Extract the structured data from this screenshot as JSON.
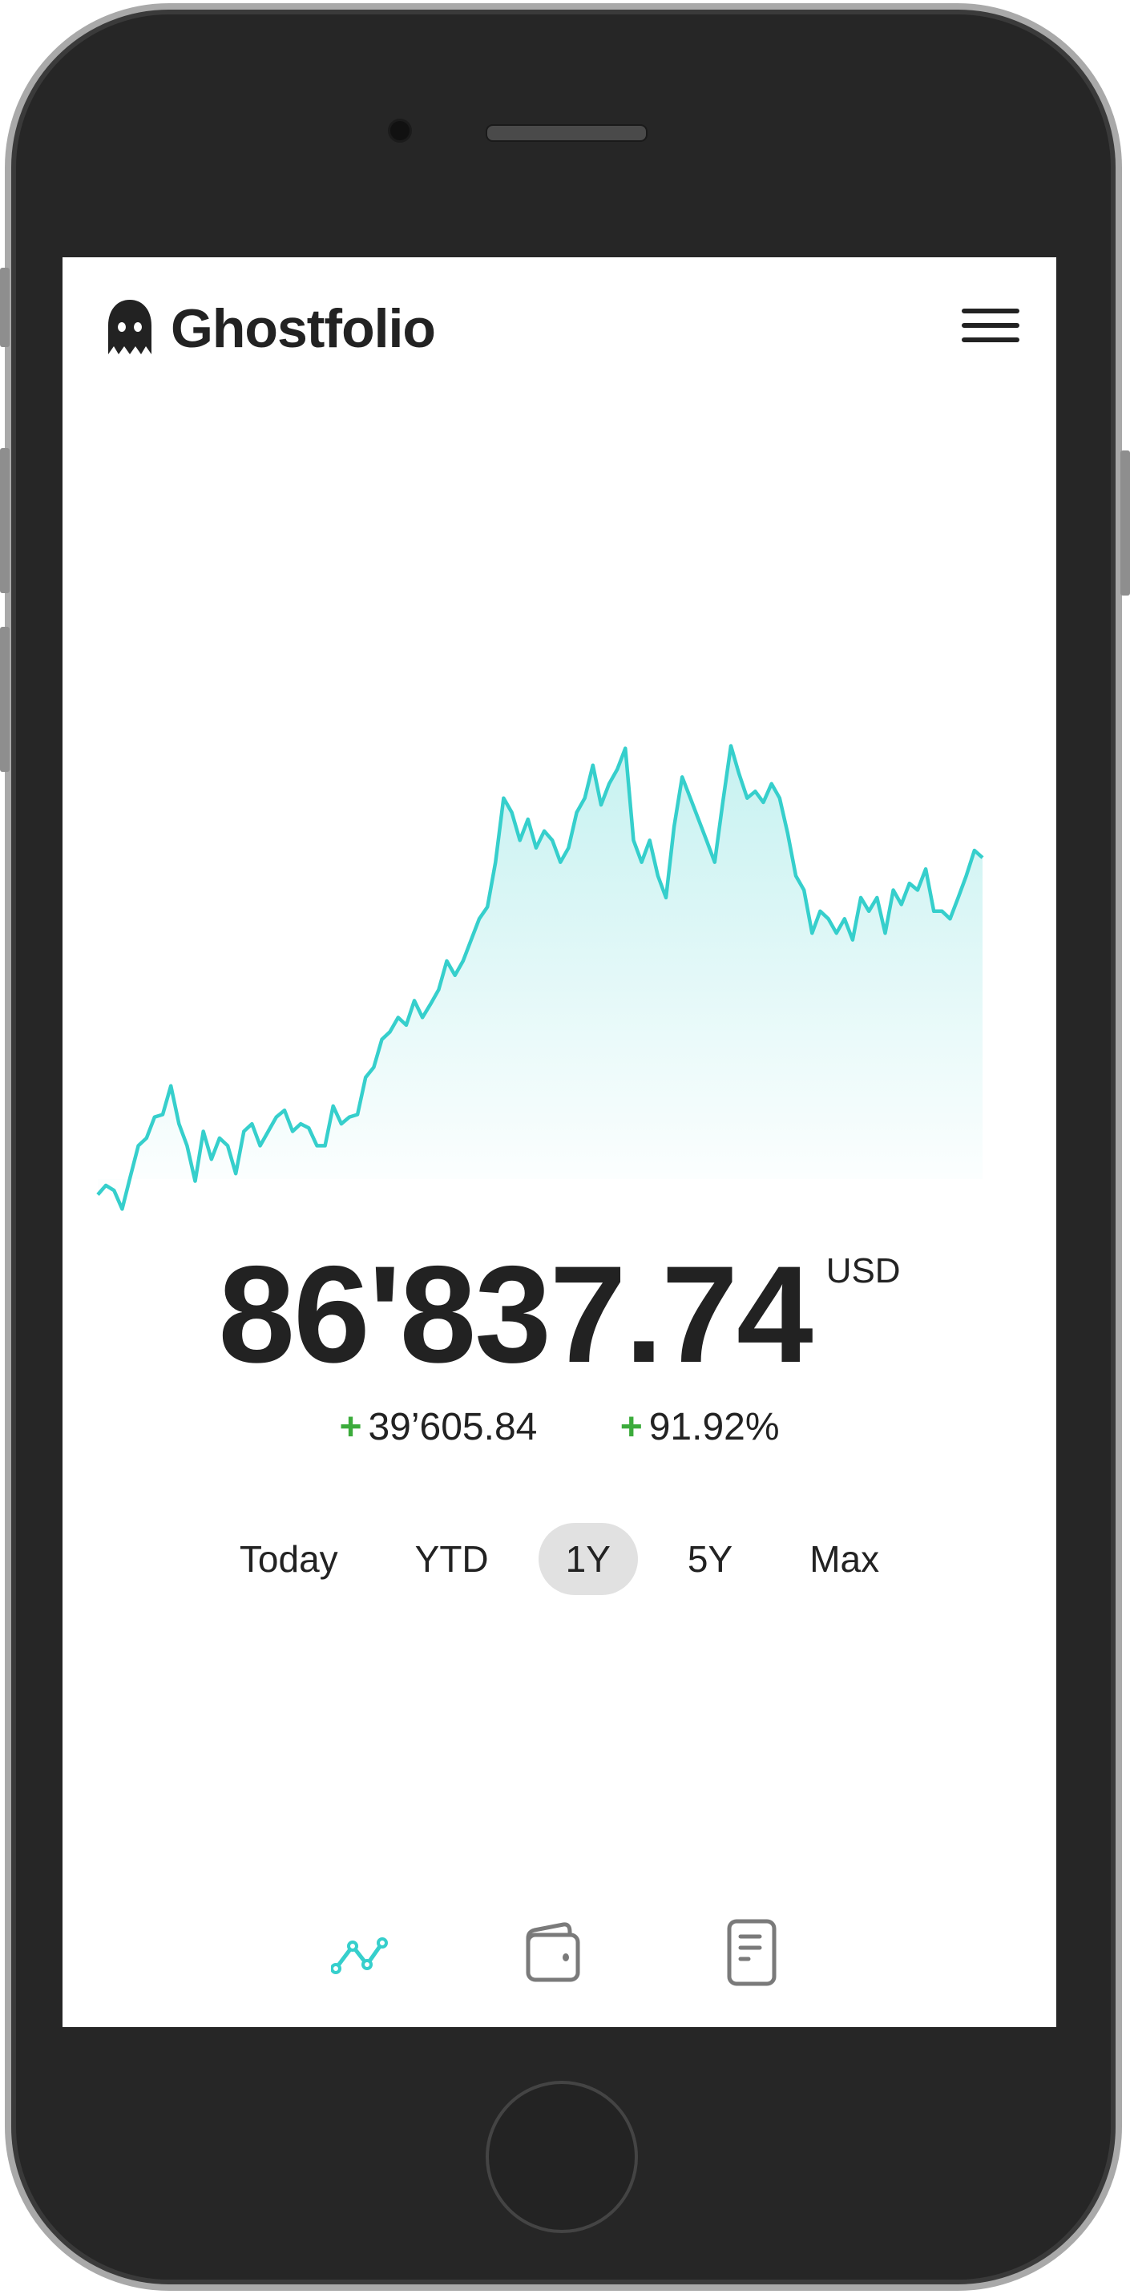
{
  "app": {
    "title": "Ghostfolio"
  },
  "header": {
    "logo_icon": "ghost-icon",
    "menu_icon": "hamburger-menu-icon"
  },
  "portfolio": {
    "value": "86'837.74",
    "currency": "USD",
    "change_absolute": "39’605.84",
    "change_percent": "91.92%",
    "change_sign": "+",
    "positive_color": "#3bab3b"
  },
  "ranges": {
    "items": [
      {
        "label": "Today"
      },
      {
        "label": "YTD"
      },
      {
        "label": "1Y"
      },
      {
        "label": "5Y"
      },
      {
        "label": "Max"
      }
    ],
    "selected": "1Y"
  },
  "bottom_nav": {
    "items": [
      {
        "icon": "line-chart-icon",
        "active": true
      },
      {
        "icon": "wallet-icon",
        "active": false
      },
      {
        "icon": "document-icon",
        "active": false
      }
    ],
    "active_color": "#36cfcc",
    "inactive_color": "#7a7a7a"
  },
  "chart_data": {
    "type": "area",
    "title": "",
    "xlabel": "",
    "ylabel": "",
    "grid": false,
    "legend": "none",
    "color": "#36cfcc",
    "series": [
      {
        "values": [
          46900,
          48000,
          47400,
          45200,
          49000,
          52700,
          53600,
          56100,
          56400,
          59800,
          55300,
          52700,
          48500,
          54400,
          51100,
          53600,
          52700,
          49400,
          54400,
          55300,
          52700,
          54400,
          56100,
          56900,
          54400,
          55300,
          54800,
          52700,
          52700,
          57400,
          55300,
          56100,
          56400,
          60800,
          62000,
          65300,
          66200,
          67900,
          67000,
          69900,
          67900,
          69500,
          71200,
          74600,
          72900,
          74600,
          77100,
          79600,
          81000,
          86300,
          93900,
          92200,
          88900,
          91400,
          88000,
          90000,
          88900,
          86300,
          88000,
          92200,
          93900,
          97800,
          93100,
          95600,
          97300,
          99800,
          88900,
          86300,
          88900,
          84700,
          82100,
          90500,
          96400,
          93900,
          91400,
          88900,
          86300,
          93400,
          100100,
          96800,
          93900,
          94700,
          93400,
          95600,
          93900,
          89700,
          84700,
          83000,
          77900,
          80500,
          79600,
          77900,
          79600,
          77100,
          82100,
          80500,
          82100,
          77900,
          83000,
          81300,
          83800,
          83000,
          85500,
          80500,
          80500,
          79600,
          82100,
          84700,
          87700,
          86838
        ]
      }
    ]
  }
}
